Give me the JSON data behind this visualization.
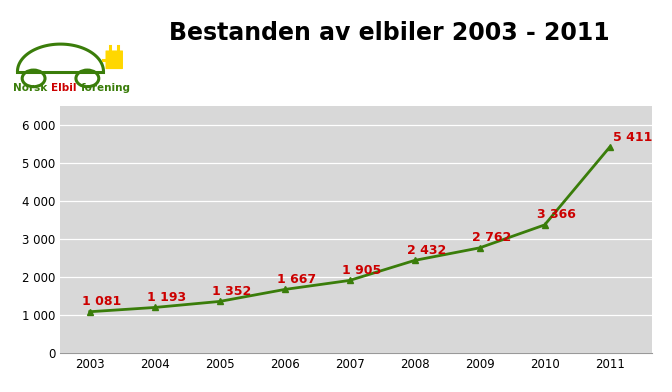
{
  "title": "Bestanden av elbiler 2003 - 2011",
  "years": [
    2003,
    2004,
    2005,
    2006,
    2007,
    2008,
    2009,
    2010,
    2011
  ],
  "values": [
    1081,
    1193,
    1352,
    1667,
    1905,
    2432,
    2762,
    3366,
    5411
  ],
  "line_color": "#3a7d0a",
  "marker_color": "#3a7d0a",
  "label_color": "#cc0000",
  "plot_bg_color": "#d8d8d8",
  "fig_bg_color": "#ffffff",
  "ylim": [
    0,
    6500
  ],
  "yticks": [
    0,
    1000,
    2000,
    3000,
    4000,
    5000,
    6000
  ],
  "ytick_labels": [
    "0",
    "1 000",
    "2 000",
    "3 000",
    "4 000",
    "5 000",
    "6 000"
  ],
  "title_fontsize": 17,
  "label_fontsize": 9,
  "marker_size": 5,
  "line_width": 2.0,
  "logo_text_norsk": "Norsk ",
  "logo_text_elbil": "Elbil",
  "logo_text_forening": "forening",
  "logo_green": "#3a7d0a",
  "logo_yellow": "#FFD700",
  "logo_red": "#cc0000"
}
